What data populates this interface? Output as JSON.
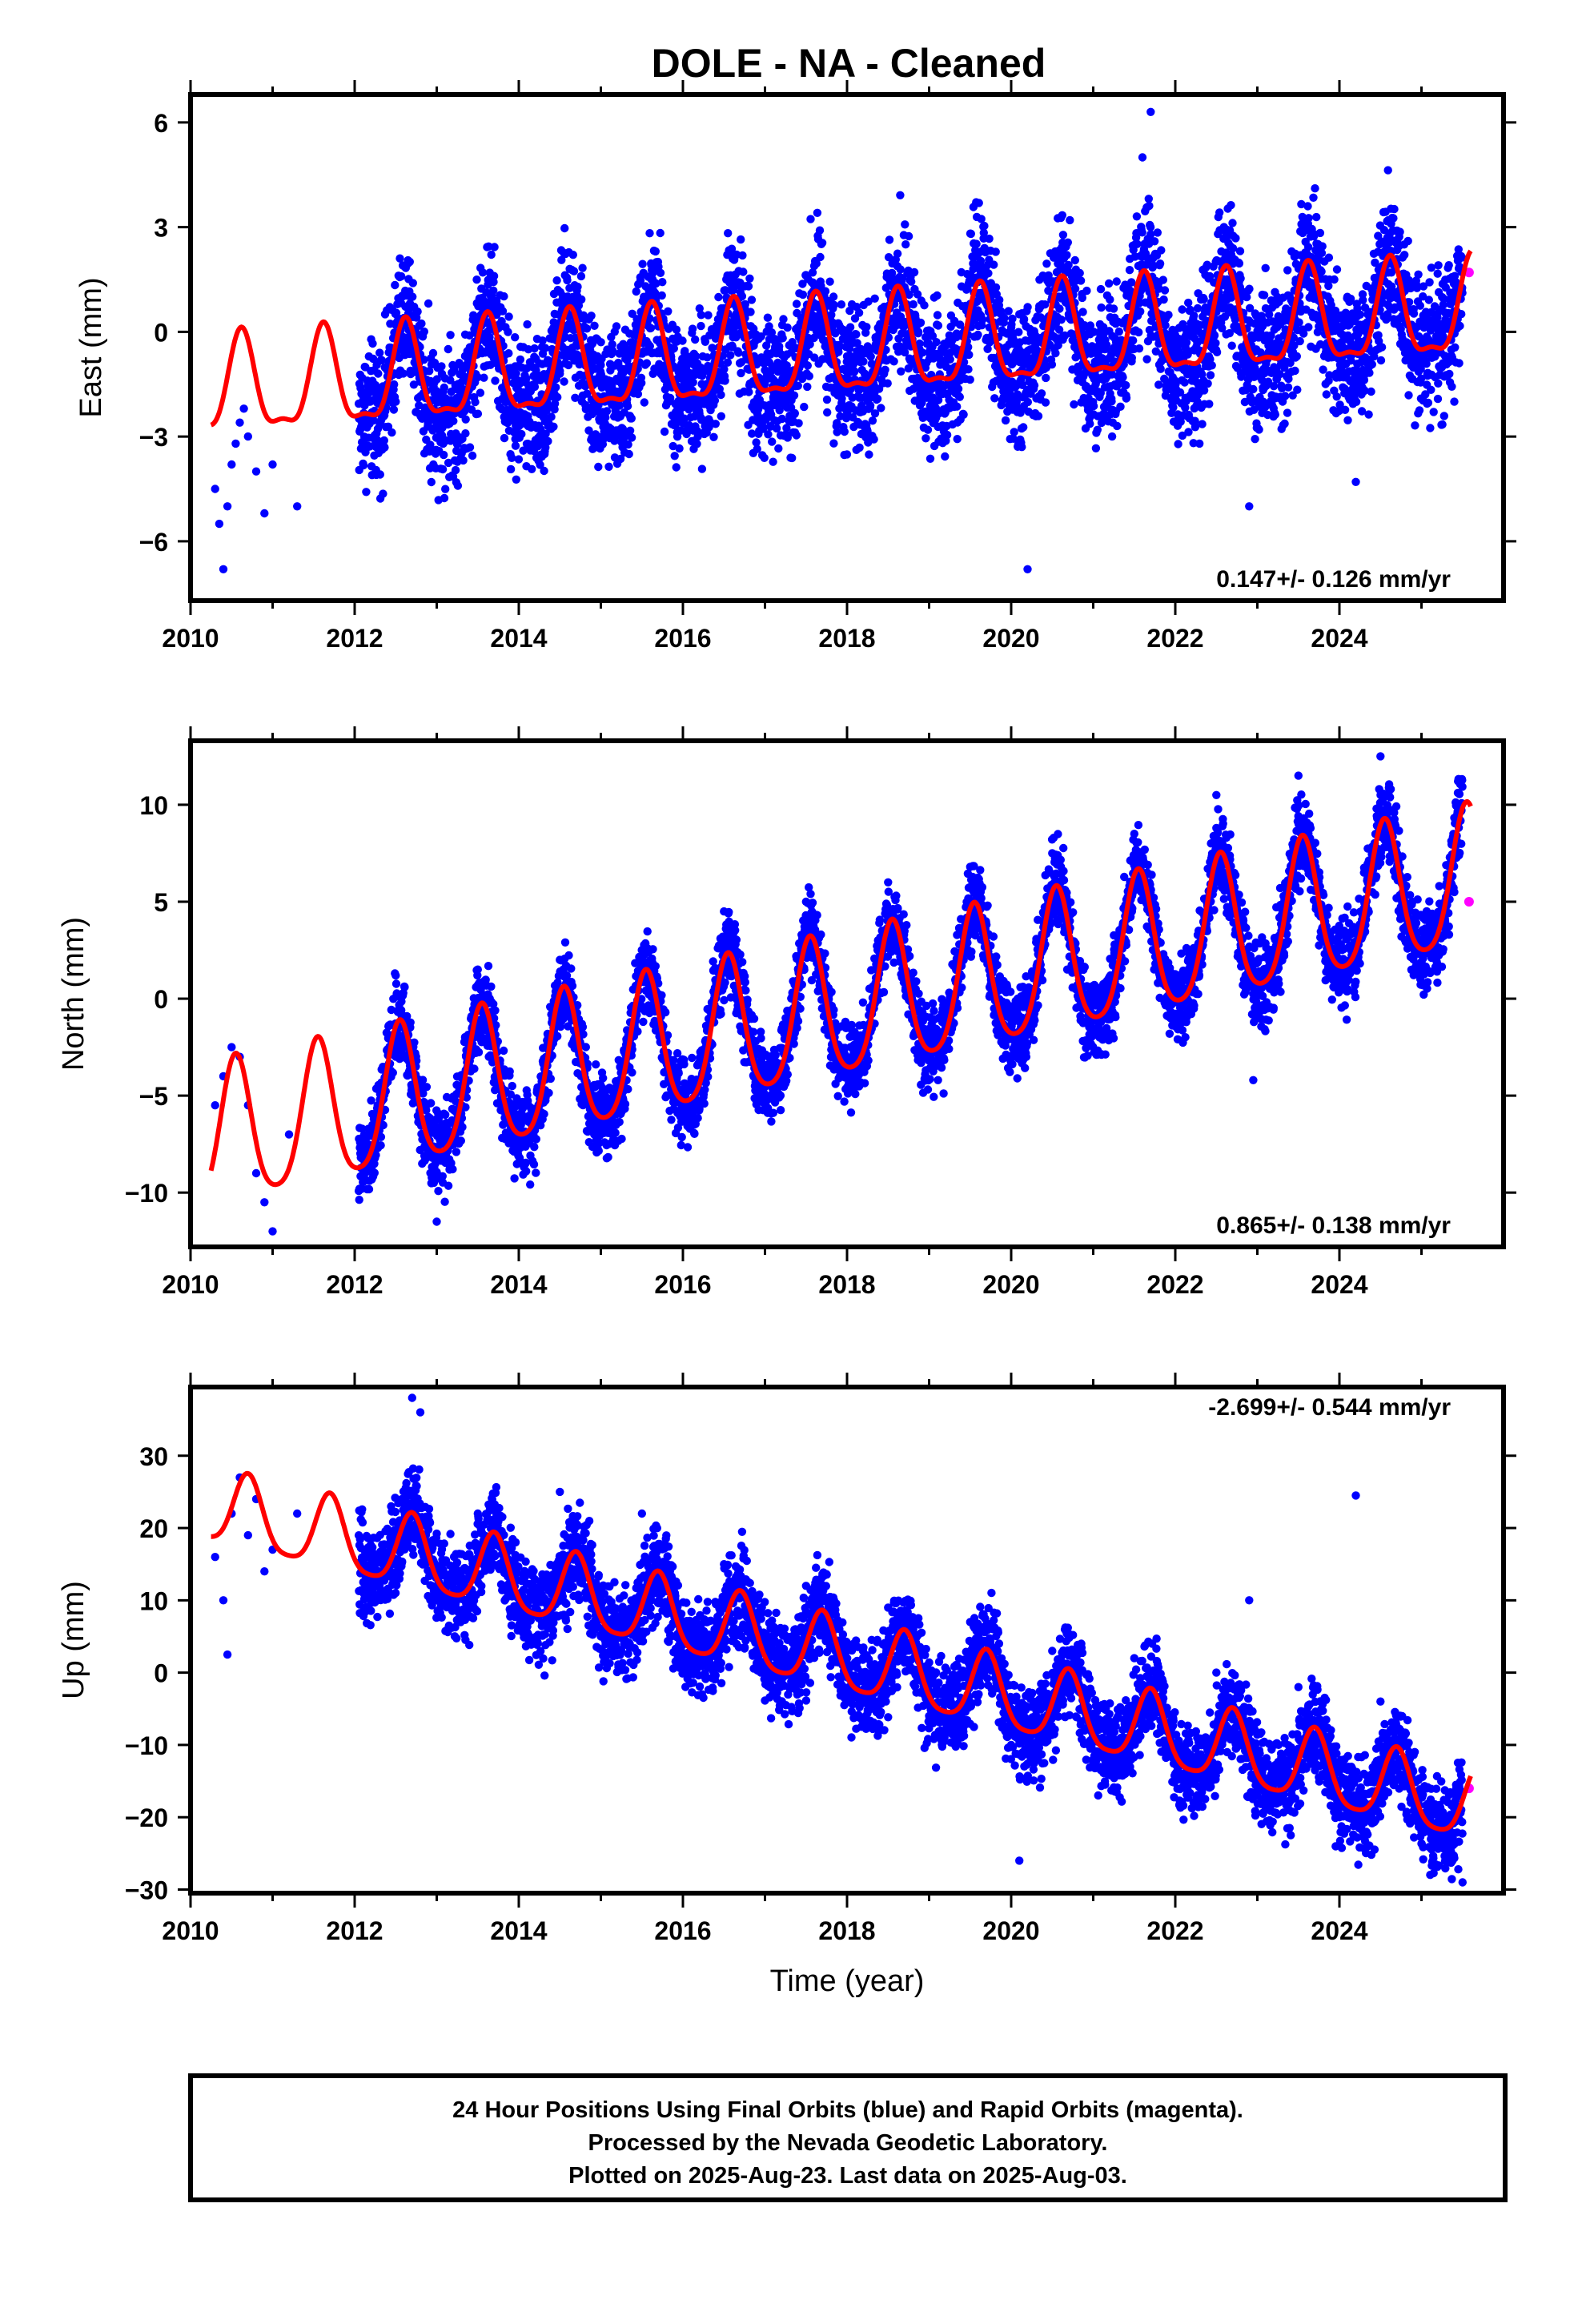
{
  "title": "DOLE  - NA - Cleaned",
  "colors": {
    "final_orbits": "#0000ff",
    "rapid_orbits": "#ff00ff",
    "model_fit": "#ff0000",
    "frame": "#000000"
  },
  "footer": {
    "line1": "24 Hour Positions Using Final Orbits (blue) and Rapid Orbits (magenta).",
    "line2": "Processed by the Nevada Geodetic Laboratory.",
    "line3": "Plotted on 2025-Aug-23. Last data on 2025-Aug-03."
  },
  "chart_data": [
    {
      "type": "scatter",
      "ylabel": "East (mm)",
      "xlabel": "",
      "rate_label": "0.147+/- 0.126 mm/yr",
      "rate_position": "bottom-right",
      "xlim": [
        2010.0,
        2026.0
      ],
      "ylim": [
        -7.7,
        6.8
      ],
      "x_ticks": [
        "2010",
        "2012",
        "2014",
        "2016",
        "2018",
        "2020",
        "2022",
        "2024"
      ],
      "y_ticks": [
        "-6",
        "-3",
        "0",
        "3",
        "6"
      ],
      "grid": false,
      "model": {
        "rate_mm_yr": 0.147,
        "offset_mm": -0.65,
        "t0": 2017.5,
        "annual_amp_mm": 1.35,
        "peak_phase_yr": 0.62,
        "semiannual_amp_mm": 0.45,
        "data_start": 2012.05,
        "data_end": 2025.5
      },
      "series": [
        {
          "role": "final-orbits",
          "mark": "dot",
          "x": [
            2010.3,
            2010.35,
            2010.4,
            2010.45,
            2010.5,
            2010.55,
            2010.6,
            2010.65,
            2010.7,
            2010.8,
            2010.9,
            2011.0,
            2011.3,
            2012.1,
            2012.5,
            2013.0,
            2013.5,
            2014.0,
            2014.5,
            2015.0,
            2015.5,
            2016.0,
            2016.5,
            2017.0,
            2017.5,
            2018.0,
            2018.5,
            2019.0,
            2019.5,
            2020.0,
            2020.2,
            2020.5,
            2021.0,
            2021.6,
            2021.7,
            2022.0,
            2022.5,
            2022.9,
            2023.0,
            2023.5,
            2024.0,
            2024.2,
            2024.6,
            2025.0,
            2025.4
          ],
          "y": [
            -4.5,
            -5.5,
            -6.8,
            -5.0,
            -3.8,
            -3.2,
            -2.6,
            -2.2,
            -3.0,
            -4.0,
            -5.2,
            -3.8,
            -5.0,
            -1.8,
            -2.0,
            -1.7,
            -1.3,
            -1.4,
            -1.2,
            -1.4,
            0.3,
            -1.3,
            0.2,
            -1.1,
            0.5,
            -0.7,
            0.7,
            -0.6,
            0.8,
            -0.8,
            -6.8,
            1.0,
            -0.6,
            5.0,
            6.3,
            -0.1,
            1.4,
            -5.0,
            -0.1,
            1.4,
            0.1,
            -4.3,
            1.7,
            0.2,
            -2.0
          ],
          "spread_mm": 1.2
        },
        {
          "role": "rapid-orbits",
          "mark": "dot",
          "x": [
            2025.58
          ],
          "y": [
            1.7
          ]
        },
        {
          "role": "model",
          "mark": "line"
        }
      ]
    },
    {
      "type": "scatter",
      "ylabel": "North (mm)",
      "xlabel": "",
      "rate_label": "0.865+/- 0.138 mm/yr",
      "rate_position": "bottom-right",
      "xlim": [
        2010.0,
        2026.0
      ],
      "ylim": [
        -12.8,
        13.3
      ],
      "x_ticks": [
        "2010",
        "2012",
        "2014",
        "2016",
        "2018",
        "2020",
        "2022",
        "2024"
      ],
      "y_ticks": [
        "-10",
        "-5",
        "0",
        "5",
        "10"
      ],
      "grid": false,
      "model": {
        "rate_mm_yr": 0.865,
        "offset_mm": -1.0,
        "t0": 2017.5,
        "annual_amp_mm": 3.6,
        "peak_phase_yr": 0.55,
        "semiannual_amp_mm": 0.6,
        "data_start": 2012.05,
        "data_end": 2025.5
      },
      "series": [
        {
          "role": "final-orbits",
          "mark": "dot",
          "x": [
            2010.3,
            2010.4,
            2010.5,
            2010.6,
            2010.7,
            2010.8,
            2010.9,
            2011.0,
            2011.2,
            2012.5,
            2013.0,
            2013.5,
            2014.0,
            2014.5,
            2015.0,
            2015.5,
            2016.0,
            2016.5,
            2017.0,
            2017.5,
            2018.0,
            2018.5,
            2019.0,
            2019.5,
            2020.0,
            2020.5,
            2021.0,
            2021.5,
            2022.0,
            2022.5,
            2022.95,
            2023.0,
            2023.5,
            2024.0,
            2024.5,
            2025.0,
            2025.4
          ],
          "y": [
            -5.5,
            -4.0,
            -2.5,
            -3.0,
            -5.5,
            -9.0,
            -10.5,
            -12.0,
            -7.0,
            1.2,
            -11.5,
            1.5,
            -7.5,
            2.0,
            -6.5,
            2.5,
            -5.0,
            4.5,
            -4.3,
            5.0,
            -3.3,
            6.0,
            -2.5,
            6.8,
            -1.5,
            7.5,
            -0.8,
            8.5,
            0.0,
            10.5,
            -4.2,
            1.0,
            11.5,
            2.0,
            12.5,
            3.0,
            5.5
          ],
          "spread_mm": 1.3
        },
        {
          "role": "rapid-orbits",
          "mark": "dot",
          "x": [
            2025.58
          ],
          "y": [
            5.0
          ]
        },
        {
          "role": "model",
          "mark": "line"
        }
      ]
    },
    {
      "type": "scatter",
      "ylabel": "Up (mm)",
      "xlabel": "Time (year)",
      "rate_label": "-2.699+/- 0.544 mm/yr",
      "rate_position": "top-right",
      "xlim": [
        2010.0,
        2026.0
      ],
      "ylim": [
        -30.5,
        39.5
      ],
      "x_ticks": [
        "2010",
        "2012",
        "2014",
        "2016",
        "2018",
        "2020",
        "2022",
        "2024"
      ],
      "y_ticks": [
        "-30",
        "-20",
        "-10",
        "0",
        "10",
        "20",
        "30"
      ],
      "grid": false,
      "model": {
        "rate_mm_yr": -2.699,
        "offset_mm": 3.2,
        "t0": 2017.5,
        "annual_amp_mm": 5.0,
        "peak_phase_yr": 0.7,
        "semiannual_amp_mm": 1.0,
        "data_start": 2012.05,
        "data_end": 2025.5
      },
      "series": [
        {
          "role": "final-orbits",
          "mark": "dot",
          "x": [
            2010.3,
            2010.4,
            2010.45,
            2010.5,
            2010.6,
            2010.7,
            2010.8,
            2010.9,
            2011.0,
            2011.3,
            2012.7,
            2012.8,
            2013.0,
            2013.5,
            2014.0,
            2014.5,
            2015.0,
            2015.5,
            2016.0,
            2016.5,
            2017.0,
            2017.5,
            2018.0,
            2018.5,
            2019.0,
            2019.5,
            2020.0,
            2020.1,
            2020.5,
            2021.0,
            2021.5,
            2022.0,
            2022.5,
            2022.9,
            2023.0,
            2023.5,
            2024.0,
            2024.2,
            2024.5,
            2025.0,
            2025.5
          ],
          "y": [
            16.0,
            10.0,
            2.5,
            22.0,
            27.0,
            19.0,
            24.0,
            14.0,
            17.0,
            22.0,
            38.0,
            36.0,
            18.0,
            22.0,
            8.0,
            25.0,
            5.0,
            22.0,
            2.0,
            15.0,
            -1.0,
            12.0,
            -3.0,
            9.0,
            -6.0,
            7.0,
            -10.0,
            -26.0,
            3.0,
            -12.0,
            2.0,
            -14.0,
            0.0,
            10.0,
            -17.0,
            -2.0,
            -20.0,
            24.5,
            -4.0,
            -22.0,
            -29.0
          ],
          "spread_mm": 4.0
        },
        {
          "role": "rapid-orbits",
          "mark": "dot",
          "x": [
            2025.58
          ],
          "y": [
            -16.0
          ]
        },
        {
          "role": "model",
          "mark": "line"
        }
      ]
    }
  ]
}
